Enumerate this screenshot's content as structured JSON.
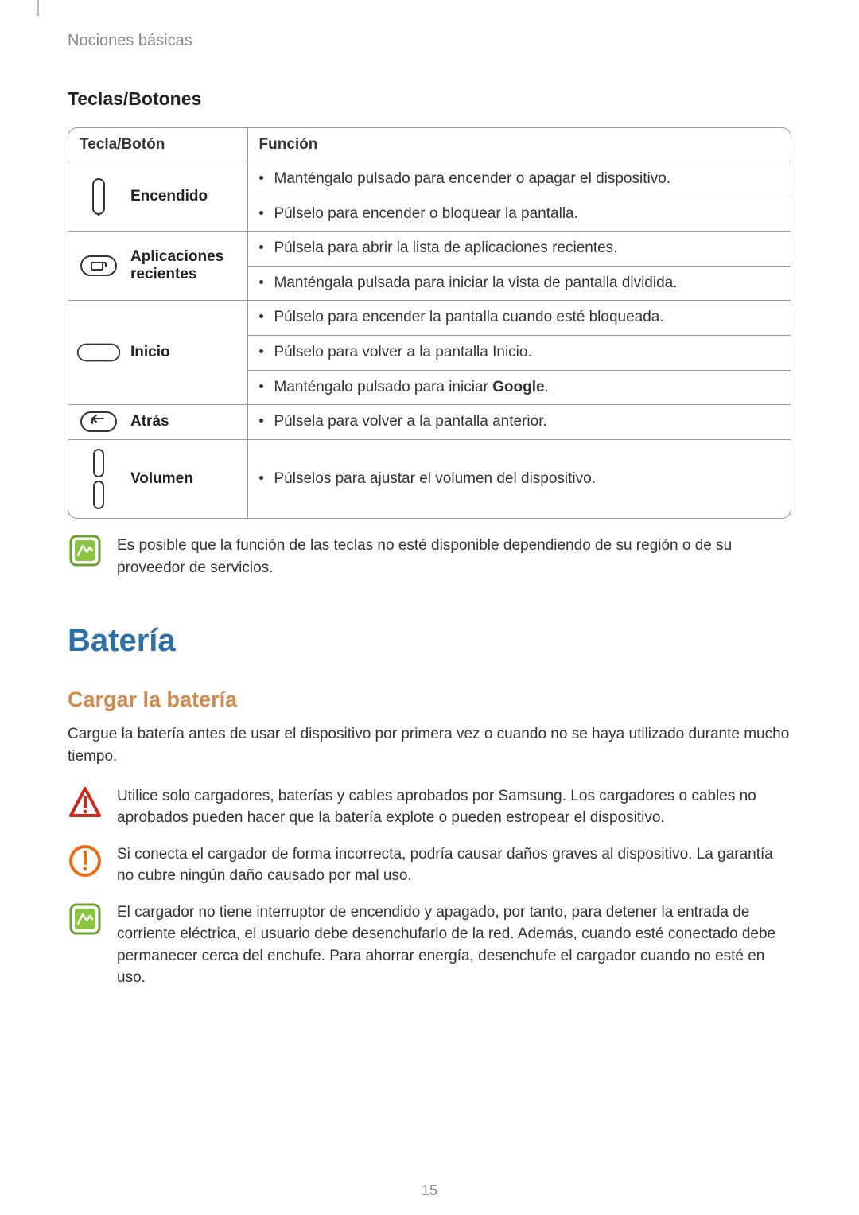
{
  "breadcrumb": "Nociones básicas",
  "section_title": "Teclas/Botones",
  "table": {
    "header_col1": "Tecla/Botón",
    "header_col2": "Función",
    "rows": [
      {
        "label": "Encendido",
        "funcs": [
          "Manténgalo pulsado para encender o apagar el dispositivo.",
          "Púlselo para encender o bloquear la pantalla."
        ]
      },
      {
        "label": "Aplicaciones recientes",
        "funcs": [
          "Púlsela para abrir la lista de aplicaciones recientes.",
          "Manténgala pulsada para iniciar la vista de pantalla dividida."
        ]
      },
      {
        "label": "Inicio",
        "funcs": [
          "Púlselo para encender la pantalla cuando esté bloqueada.",
          "Púlselo para volver a la pantalla Inicio.",
          "Manténgalo pulsado para iniciar <b>Google</b>."
        ]
      },
      {
        "label": "Atrás",
        "funcs": [
          "Púlsela para volver a la pantalla anterior."
        ]
      },
      {
        "label": "Volumen",
        "funcs": [
          "Púlselos para ajustar el volumen del dispositivo."
        ]
      }
    ]
  },
  "note_after_table": "Es posible que la función de las teclas no esté disponible dependiendo de su región o de su proveedor de servicios.",
  "h1": "Batería",
  "h2": "Cargar la batería",
  "para1": "Cargue la batería antes de usar el dispositivo por primera vez o cuando no se haya utilizado durante mucho tiempo.",
  "callouts": [
    {
      "type": "warning",
      "text": "Utilice solo cargadores, baterías y cables aprobados por Samsung. Los cargadores o cables no aprobados pueden hacer que la batería explote o pueden estropear el dispositivo."
    },
    {
      "type": "caution",
      "text": "Si conecta el cargador de forma incorrecta, podría causar daños graves al dispositivo. La garantía no cubre ningún daño causado por mal uso."
    },
    {
      "type": "note",
      "text": "El cargador no tiene interruptor de encendido y apagado, por tanto, para detener la entrada de corriente eléctrica, el usuario debe desenchufarlo de la red. Además, cuando esté conectado debe permanecer cerca del enchufe. Para ahorrar energía, desenchufe el cargador cuando no esté en uso."
    }
  ],
  "page_number": "15",
  "colors": {
    "h1": "#2f6fa8",
    "h2": "#d08b4a",
    "warning": "#c72a1c",
    "caution": "#e96b13",
    "note_border": "#6aa22f",
    "note_fill": "#89c540"
  }
}
